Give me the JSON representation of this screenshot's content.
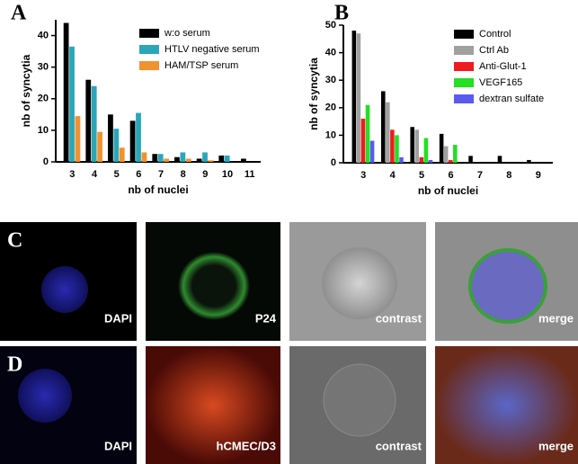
{
  "chart_data": [
    {
      "type": "bar",
      "panel": "A",
      "xlabel": "nb of nuclei",
      "ylabel": "nb of syncytia",
      "categories": [
        "3",
        "4",
        "5",
        "6",
        "7",
        "8",
        "9",
        "10",
        "11"
      ],
      "ylim": [
        0,
        45
      ],
      "yticks": [
        0,
        10,
        20,
        30,
        40
      ],
      "series": [
        {
          "name": "w:o serum",
          "color": "#000000",
          "values": [
            44,
            26,
            15,
            13,
            2.5,
            1.5,
            1,
            2,
            1
          ]
        },
        {
          "name": "HTLV negative serum",
          "color": "#2aa6b8",
          "values": [
            36.5,
            24,
            10.5,
            15.5,
            2.5,
            3,
            3,
            2,
            0
          ]
        },
        {
          "name": "HAM/TSP serum",
          "color": "#f0922e",
          "values": [
            14.5,
            9.5,
            4.5,
            3,
            1,
            1,
            0.5,
            0,
            0
          ]
        }
      ]
    },
    {
      "type": "bar",
      "panel": "B",
      "xlabel": "nb of nuclei",
      "ylabel": "nb of syncytia",
      "categories": [
        "3",
        "4",
        "5",
        "6",
        "7",
        "8",
        "9"
      ],
      "ylim": [
        0,
        50
      ],
      "yticks": [
        0,
        10,
        20,
        30,
        40,
        50
      ],
      "series": [
        {
          "name": "Control",
          "color": "#000000",
          "values": [
            48,
            26,
            13,
            10.5,
            2.5,
            2.5,
            1
          ]
        },
        {
          "name": "Ctrl Ab",
          "color": "#a0a0a0",
          "values": [
            47,
            22,
            12,
            6,
            0,
            0,
            0
          ]
        },
        {
          "name": "Anti-Glut-1",
          "color": "#ee1c1c",
          "values": [
            16,
            12,
            2,
            1,
            0,
            0,
            0
          ]
        },
        {
          "name": "VEGF165",
          "color": "#22e022",
          "values": [
            21,
            10,
            9,
            6.5,
            0,
            0,
            0
          ]
        },
        {
          "name": "dextran sulfate",
          "color": "#5a5af0",
          "values": [
            8,
            2,
            1,
            0,
            0,
            0,
            0
          ]
        }
      ]
    }
  ],
  "images": [
    {
      "panel": "C",
      "labels": [
        "DAPI",
        "P24",
        "contrast",
        "merge"
      ]
    },
    {
      "panel": "D",
      "labels": [
        "DAPI",
        "hCMEC/D3",
        "contrast",
        "merge"
      ]
    }
  ]
}
